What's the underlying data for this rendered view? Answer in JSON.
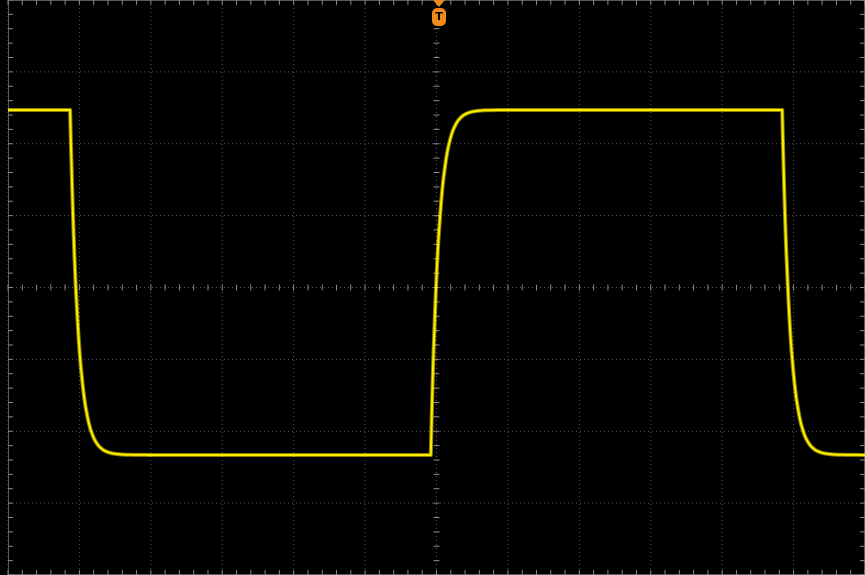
{
  "scope": {
    "background_color": "#000000",
    "grid_color": "#5a5a5a",
    "trace_color": "#ffee00",
    "trigger_color": "#f08a1c",
    "horizontal_divisions": 12,
    "vertical_divisions": 8,
    "minor_ticks_per_division": 5,
    "grid_style": "dotted",
    "trigger_label": "T"
  },
  "trace": {
    "type": "square wave",
    "high_level_div": 2.47,
    "low_level_div": -2.33,
    "falling_edge_1_div": -5.13,
    "rising_edge_div": -0.08,
    "falling_edge_2_div": 4.84,
    "start_div": -6.0,
    "end_div": 6.0
  }
}
